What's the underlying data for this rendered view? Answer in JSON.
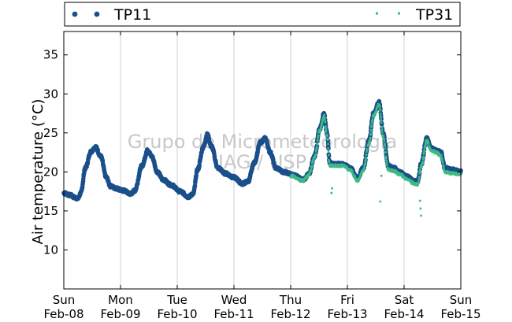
{
  "chart_data": {
    "type": "scatter",
    "ylabel": "Air temperature (°C)",
    "xlabel": "",
    "ylim": [
      5,
      38
    ],
    "yticks": [
      10,
      15,
      20,
      25,
      30,
      35
    ],
    "xlim": [
      0,
      7
    ],
    "xticks": [
      {
        "pos": 0,
        "day": "Sun",
        "date": "Feb-08"
      },
      {
        "pos": 1,
        "day": "Mon",
        "date": "Feb-09"
      },
      {
        "pos": 2,
        "day": "Tue",
        "date": "Feb-10"
      },
      {
        "pos": 3,
        "day": "Wed",
        "date": "Feb-11"
      },
      {
        "pos": 4,
        "day": "Thu",
        "date": "Feb-12"
      },
      {
        "pos": 5,
        "day": "Fri",
        "date": "Feb-13"
      },
      {
        "pos": 6,
        "day": "Sat",
        "date": "Feb-14"
      },
      {
        "pos": 7,
        "day": "Sun",
        "date": "Feb-15"
      }
    ],
    "grid": "vertical",
    "legend_position": "top",
    "watermark": [
      "Grupo de Micrometeorologia",
      "IAG / USP"
    ],
    "series": [
      {
        "name": "TP11",
        "color": "#1a4f8a",
        "marker": "circle",
        "keypoints": [
          [
            0.0,
            17.3
          ],
          [
            0.12,
            17.0
          ],
          [
            0.2,
            16.7
          ],
          [
            0.25,
            16.6
          ],
          [
            0.3,
            17.3
          ],
          [
            0.38,
            20.5
          ],
          [
            0.48,
            22.6
          ],
          [
            0.56,
            23.2
          ],
          [
            0.65,
            22.0
          ],
          [
            0.75,
            19.3
          ],
          [
            0.82,
            18.2
          ],
          [
            0.92,
            17.9
          ],
          [
            1.05,
            17.6
          ],
          [
            1.18,
            17.2
          ],
          [
            1.25,
            17.6
          ],
          [
            1.38,
            20.8
          ],
          [
            1.48,
            22.8
          ],
          [
            1.55,
            22.0
          ],
          [
            1.65,
            20.0
          ],
          [
            1.75,
            19.0
          ],
          [
            1.9,
            18.3
          ],
          [
            2.05,
            17.5
          ],
          [
            2.2,
            16.8
          ],
          [
            2.28,
            17.2
          ],
          [
            2.36,
            20.3
          ],
          [
            2.46,
            23.2
          ],
          [
            2.53,
            24.8
          ],
          [
            2.6,
            23.3
          ],
          [
            2.72,
            20.5
          ],
          [
            2.85,
            19.8
          ],
          [
            3.0,
            19.3
          ],
          [
            3.15,
            18.5
          ],
          [
            3.25,
            18.8
          ],
          [
            3.36,
            21.2
          ],
          [
            3.47,
            23.8
          ],
          [
            3.55,
            24.3
          ],
          [
            3.64,
            22.5
          ],
          [
            3.74,
            20.5
          ],
          [
            3.88,
            20.0
          ],
          [
            4.05,
            19.6
          ],
          [
            4.22,
            19.0
          ],
          [
            4.32,
            19.7
          ],
          [
            4.42,
            22.0
          ],
          [
            4.51,
            25.5
          ],
          [
            4.59,
            27.4
          ],
          [
            4.64,
            25.0
          ],
          [
            4.69,
            21.2
          ],
          [
            4.78,
            21.0
          ],
          [
            4.92,
            21.0
          ],
          [
            5.05,
            20.5
          ],
          [
            5.18,
            19.2
          ],
          [
            5.28,
            20.5
          ],
          [
            5.38,
            24.0
          ],
          [
            5.46,
            27.5
          ],
          [
            5.56,
            28.9
          ],
          [
            5.63,
            25.0
          ],
          [
            5.72,
            20.8
          ],
          [
            5.82,
            20.5
          ],
          [
            5.92,
            20.0
          ],
          [
            6.05,
            19.4
          ],
          [
            6.18,
            18.8
          ],
          [
            6.24,
            18.8
          ],
          [
            6.3,
            21.0
          ],
          [
            6.4,
            24.3
          ],
          [
            6.48,
            23.0
          ],
          [
            6.57,
            22.8
          ],
          [
            6.65,
            22.5
          ],
          [
            6.72,
            20.5
          ],
          [
            6.85,
            20.3
          ],
          [
            7.0,
            20.0
          ]
        ]
      },
      {
        "name": "TP31",
        "color": "#3dba86",
        "marker": "square",
        "keypoints": [
          [
            4.0,
            19.5
          ],
          [
            4.22,
            18.9
          ],
          [
            4.32,
            19.6
          ],
          [
            4.42,
            21.8
          ],
          [
            4.51,
            25.2
          ],
          [
            4.59,
            27.2
          ],
          [
            4.64,
            24.8
          ],
          [
            4.69,
            20.8
          ],
          [
            4.78,
            20.8
          ],
          [
            4.92,
            20.8
          ],
          [
            5.05,
            20.2
          ],
          [
            5.18,
            18.9
          ],
          [
            5.28,
            20.2
          ],
          [
            5.38,
            23.7
          ],
          [
            5.46,
            27.2
          ],
          [
            5.56,
            28.6
          ],
          [
            5.63,
            24.5
          ],
          [
            5.72,
            20.3
          ],
          [
            5.82,
            20.1
          ],
          [
            5.92,
            19.7
          ],
          [
            6.05,
            19.1
          ],
          [
            6.18,
            18.5
          ],
          [
            6.24,
            18.4
          ],
          [
            6.3,
            20.7
          ],
          [
            6.4,
            24.0
          ],
          [
            6.48,
            22.7
          ],
          [
            6.57,
            22.5
          ],
          [
            6.65,
            22.0
          ],
          [
            6.72,
            20.0
          ],
          [
            6.85,
            19.8
          ],
          [
            7.0,
            19.7
          ]
        ],
        "outliers": [
          [
            4.72,
            17.3
          ],
          [
            4.73,
            17.9
          ],
          [
            5.58,
            16.2
          ],
          [
            5.6,
            19.5
          ],
          [
            6.28,
            16.3
          ],
          [
            6.29,
            15.3
          ],
          [
            6.3,
            14.4
          ]
        ]
      }
    ]
  }
}
